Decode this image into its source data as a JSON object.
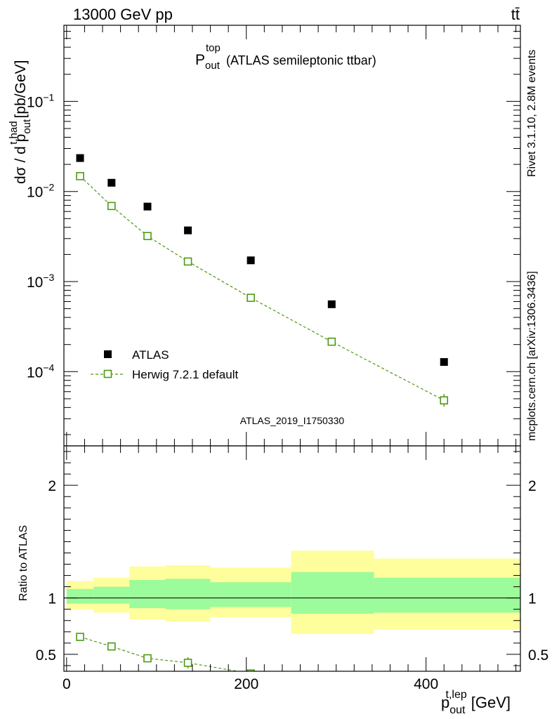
{
  "header": {
    "energy": "13000 GeV pp",
    "process": "tt̄"
  },
  "side_labels": {
    "rivet": "Rivet 3.1.10,  2.8M events",
    "mcplots": "mcplots.cern.ch [arXiv:1306.3436]"
  },
  "chart_data": [
    {
      "type": "scatter",
      "title": "P_out^top (ATLAS semileptonic ttbar)",
      "title_main": "P",
      "title_sub": "out",
      "title_sup": "top",
      "title_rest": "(ATLAS semileptonic ttbar)",
      "ylabel": {
        "a": "dσ / d p",
        "sup": "t,had",
        "sub": "out",
        "b": "[pb/GeV]"
      },
      "yscale": "log",
      "ylim": [
        1.5e-05,
        0.7
      ],
      "xlim": [
        -3,
        505
      ],
      "y_ticks": [
        {
          "value": 0.1,
          "base": "10",
          "exp": "−1"
        },
        {
          "value": 0.01,
          "base": "10",
          "exp": "−2"
        },
        {
          "value": 0.001,
          "base": "10",
          "exp": "−3"
        },
        {
          "value": 0.0001,
          "base": "10",
          "exp": "−4"
        }
      ],
      "watermark": "ATLAS_2019_I1750330",
      "legend": {
        "position": "bottom-left",
        "entries": [
          {
            "label": "ATLAS",
            "marker": "filled-square",
            "color": "#000000"
          },
          {
            "label": "Herwig 7.2.1 default",
            "marker": "open-square-line",
            "color": "#4c9a12"
          }
        ]
      },
      "series": [
        {
          "name": "ATLAS",
          "x": [
            15,
            50,
            90,
            135,
            205,
            295,
            420
          ],
          "y": [
            0.0235,
            0.0125,
            0.0068,
            0.0037,
            0.00172,
            0.00056,
            0.000128
          ]
        },
        {
          "name": "Herwig 7.2.1 default",
          "x": [
            15,
            50,
            90,
            135,
            205,
            295,
            420
          ],
          "y": [
            0.0148,
            0.0069,
            0.0032,
            0.00167,
            0.00066,
            0.000215,
            4.8e-05
          ]
        }
      ]
    },
    {
      "type": "line",
      "ylabel": "Ratio to ATLAS",
      "xlabel": {
        "base": "p",
        "sup": "t,lep",
        "sub": "out",
        "unit": "[GeV]"
      },
      "xlim": [
        -3,
        505
      ],
      "ylim": [
        0.35,
        2.35
      ],
      "x_ticks": [
        0,
        200,
        400
      ],
      "x_tick_labels": [
        "0",
        "200",
        "400"
      ],
      "y_ticks": [
        0.5,
        1,
        2
      ],
      "y_tick_labels": [
        "0.5",
        "1",
        "2"
      ],
      "bands": [
        {
          "x_low": 0,
          "x_high": 30,
          "inner": [
            0.95,
            1.08
          ],
          "outer": [
            0.9,
            1.15
          ]
        },
        {
          "x_low": 30,
          "x_high": 70,
          "inner": [
            0.95,
            1.1
          ],
          "outer": [
            0.87,
            1.18
          ]
        },
        {
          "x_low": 70,
          "x_high": 110,
          "inner": [
            0.91,
            1.16
          ],
          "outer": [
            0.81,
            1.28
          ]
        },
        {
          "x_low": 110,
          "x_high": 160,
          "inner": [
            0.9,
            1.17
          ],
          "outer": [
            0.79,
            1.29
          ]
        },
        {
          "x_low": 160,
          "x_high": 250,
          "inner": [
            0.92,
            1.14
          ],
          "outer": [
            0.83,
            1.27
          ]
        },
        {
          "x_low": 250,
          "x_high": 342,
          "inner": [
            0.86,
            1.23
          ],
          "outer": [
            0.68,
            1.42
          ]
        },
        {
          "x_low": 342,
          "x_high": 505,
          "inner": [
            0.87,
            1.18
          ],
          "outer": [
            0.72,
            1.35
          ]
        }
      ],
      "series": [
        {
          "name": "Herwig 7.2.1 default / ATLAS",
          "x": [
            15,
            50,
            90,
            135,
            205
          ],
          "y": [
            0.655,
            0.57,
            0.465,
            0.425,
            0.33
          ]
        }
      ]
    }
  ],
  "colors": {
    "mc": "#4c9a12",
    "data": "#000000",
    "band_inner": "#9cfb9a",
    "band_outer": "#fefe9c",
    "side_text": "#8f8f8f",
    "watermark": "#b3b3b3"
  }
}
